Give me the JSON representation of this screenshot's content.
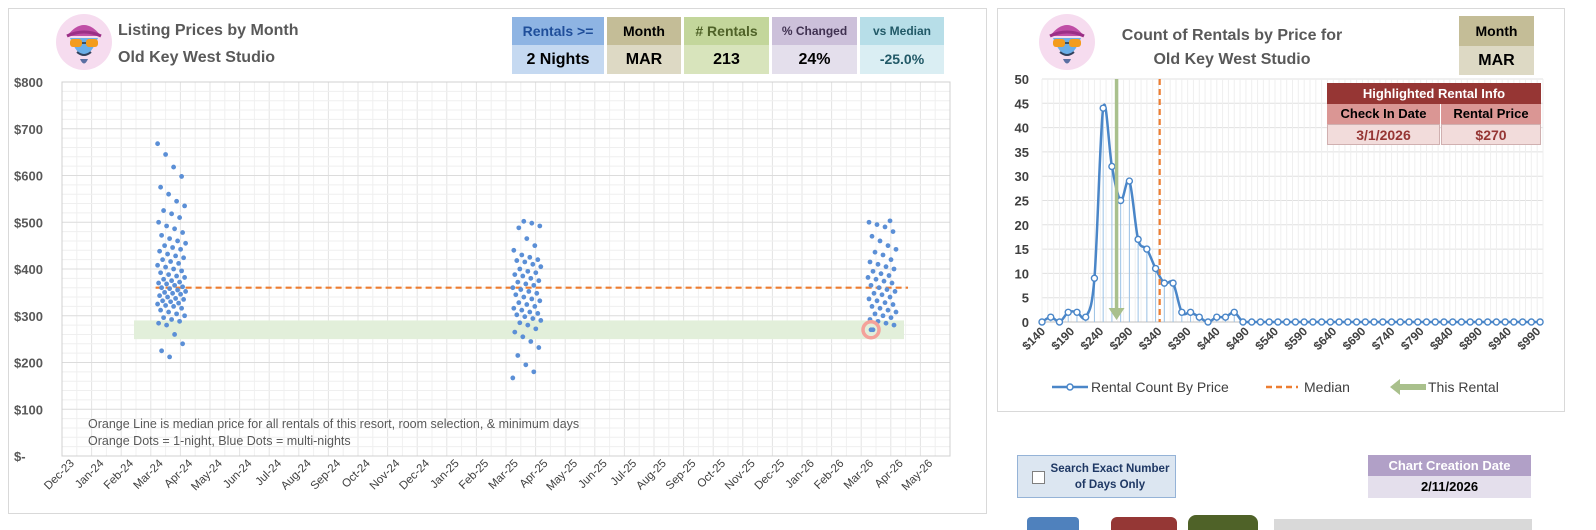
{
  "left": {
    "title_line1": "Listing Prices by Month",
    "title_line2": "Old Key West Studio",
    "stats": [
      {
        "label": "Rentals >=",
        "value": "2 Nights",
        "header_color": "#8eb4e3",
        "label_color": "#1f4e9a",
        "value_color": "#c5d9f1"
      },
      {
        "label": "Month",
        "value": "MAR",
        "header_color": "#c4bd97",
        "label_color": "#000000",
        "value_color": "#ddd9c4"
      },
      {
        "label": "# Rentals",
        "value": "213",
        "header_color": "#c3d69b",
        "label_color": "#4f6228",
        "value_color": "#d8e4bc"
      },
      {
        "label": "% Changed",
        "value": "24%",
        "header_color": "#ccc0da",
        "label_color": "#403151",
        "value_color": "#e4dfec"
      },
      {
        "label": "vs Median",
        "value": "-25.0%",
        "header_color": "#b7dee8",
        "label_color": "#215967",
        "value_color": "#daeef3"
      }
    ],
    "note_line1": "Orange Line is median price for all rentals of this resort, room selection, & minimum days",
    "note_line2": "Orange Dots = 1-night, Blue Dots = multi-nights"
  },
  "right": {
    "title_line1": "Count of Rentals by Price for",
    "title_line2": "Old Key West Studio",
    "month_label": "Month",
    "month_value": "MAR",
    "info_title": "Highlighted Rental Info",
    "info_col1": "Check In Date",
    "info_col2": "Rental Price",
    "info_val1": "3/1/2026",
    "info_val2": "$270",
    "legend": [
      "Rental Count By Price",
      "Median",
      "This Rental"
    ]
  },
  "controls": {
    "exact_days_line1": "Search Exact Number",
    "exact_days_line2": "of Days Only",
    "creation_label": "Chart Creation Date",
    "creation_value": "2/11/2026"
  },
  "colors": {
    "point": "#5b8fd6",
    "median": "#ed7d31",
    "band": "#e2efda",
    "highlight": "#f4a29a",
    "curve": "#4a86c8",
    "this_rental": "#a9c08c"
  },
  "chart_data": [
    {
      "type": "scatter",
      "title": "Listing Prices by Month",
      "x_ticks": [
        "Dec-23",
        "Jan-24",
        "Feb-24",
        "Mar-24",
        "Apr-24",
        "May-24",
        "Jun-24",
        "Jul-24",
        "Aug-24",
        "Sep-24",
        "Oct-24",
        "Nov-24",
        "Dec-24",
        "Jan-25",
        "Feb-25",
        "Mar-25",
        "Apr-25",
        "May-25",
        "Jun-25",
        "Jul-25",
        "Aug-25",
        "Sep-25",
        "Oct-25",
        "Nov-25",
        "Dec-25",
        "Jan-26",
        "Feb-26",
        "Mar-26",
        "Apr-26",
        "May-26"
      ],
      "y_ticks": [
        "$-",
        "$100",
        "$200",
        "$300",
        "$400",
        "$500",
        "$600",
        "$700",
        "$800"
      ],
      "ylim": [
        0,
        800
      ],
      "median": 360,
      "highlight_band": [
        250,
        290
      ],
      "highlighted_point": {
        "month": 27.0,
        "price": 270
      },
      "grid": true,
      "series": [
        {
          "month": 3.0,
          "prices": [
            668,
            645,
            618,
            598,
            575,
            560,
            545,
            535,
            525,
            518,
            510,
            500,
            492,
            486,
            478,
            472,
            465,
            460,
            455,
            450,
            446,
            442,
            438,
            432,
            428,
            424,
            420,
            416,
            412,
            408,
            404,
            400,
            396,
            392,
            388,
            385,
            382,
            378,
            375,
            372,
            370,
            368,
            365,
            362,
            360,
            358,
            355,
            352,
            350,
            348,
            346,
            343,
            340,
            337,
            335,
            332,
            330,
            327,
            325,
            322,
            320,
            316,
            312,
            308,
            304,
            300,
            296,
            292,
            288,
            284,
            280,
            260,
            240,
            225,
            212
          ]
        },
        {
          "month": 15.0,
          "prices": [
            502,
            498,
            492,
            488,
            465,
            450,
            440,
            430,
            425,
            420,
            418,
            415,
            410,
            405,
            400,
            395,
            392,
            388,
            385,
            380,
            375,
            372,
            368,
            365,
            360,
            356,
            352,
            348,
            345,
            340,
            336,
            332,
            328,
            324,
            320,
            316,
            312,
            308,
            305,
            302,
            298,
            294,
            290,
            285,
            280,
            272,
            265,
            255,
            245,
            232,
            215,
            195,
            180,
            167
          ]
        },
        {
          "month": 27.0,
          "prices": [
            503,
            500,
            495,
            490,
            480,
            470,
            460,
            450,
            442,
            436,
            430,
            420,
            415,
            410,
            405,
            400,
            395,
            390,
            386,
            382,
            378,
            374,
            370,
            365,
            360,
            356,
            352,
            348,
            345,
            340,
            336,
            332,
            328,
            324,
            320,
            316,
            312,
            308,
            304,
            300,
            296,
            292,
            288,
            284,
            280,
            270
          ]
        }
      ]
    },
    {
      "type": "line",
      "title": "Count of Rentals by Price for Old Key West Studio",
      "x_tick_labels": [
        "$140",
        "$190",
        "$240",
        "$290",
        "$340",
        "$390",
        "$440",
        "$490",
        "$540",
        "$590",
        "$640",
        "$690",
        "$740",
        "$790",
        "$840",
        "$890",
        "$940",
        "$990"
      ],
      "ylim": [
        0,
        50
      ],
      "y_ticks": [
        0,
        5,
        10,
        15,
        20,
        25,
        30,
        35,
        40,
        45,
        50
      ],
      "median": 342,
      "this_rental": 270,
      "series": [
        {
          "name": "Rental Count By Price",
          "x": [
            140,
            155,
            170,
            185,
            200,
            215,
            230,
            245,
            260,
            275,
            290,
            305,
            320,
            335,
            350,
            365,
            380,
            395,
            410,
            425,
            440,
            455,
            470,
            485,
            500,
            515,
            530,
            545,
            560,
            575,
            590,
            605,
            620,
            635,
            650,
            665,
            680,
            695,
            710,
            725,
            740,
            755,
            770,
            785,
            800,
            815,
            830,
            845,
            860,
            875,
            890,
            905,
            920,
            935,
            950,
            965,
            980,
            995
          ],
          "values": [
            0,
            1,
            0,
            2,
            2,
            1,
            9,
            44,
            32,
            25,
            29,
            17,
            15,
            11,
            8,
            8,
            2,
            2,
            1,
            0,
            1,
            1,
            2,
            0,
            0,
            0,
            0,
            0,
            0,
            0,
            0,
            0,
            0,
            0,
            0,
            0,
            0,
            0,
            0,
            0,
            0,
            0,
            0,
            0,
            0,
            0,
            0,
            0,
            0,
            0,
            0,
            0,
            0,
            0,
            0,
            0,
            0,
            0
          ]
        }
      ]
    }
  ]
}
